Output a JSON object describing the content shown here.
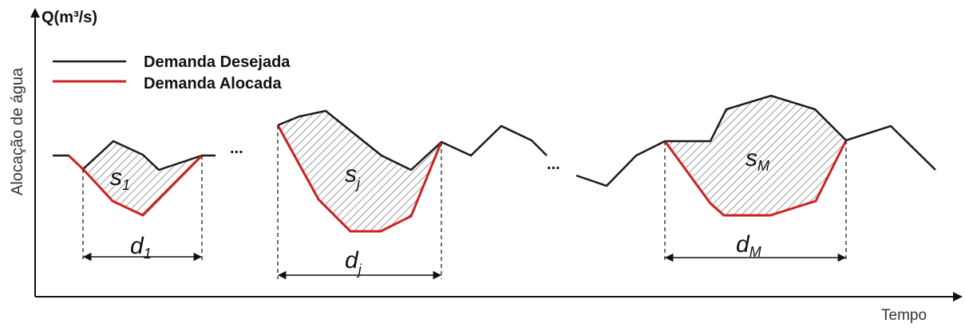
{
  "axis": {
    "y_title": "Q(m³/s)",
    "y_label": "Alocação de água",
    "x_label": "Tempo"
  },
  "legend": [
    {
      "label": "Demanda Desejada",
      "color": "#1a1a1a"
    },
    {
      "label": "Demanda Alocada",
      "color": "#cc2222"
    }
  ],
  "ellipsis": [
    "...",
    "..."
  ],
  "events": [
    {
      "area": {
        "symbol": "s",
        "sub": "1"
      },
      "duration": {
        "symbol": "d",
        "sub": "1"
      }
    },
    {
      "area": {
        "symbol": "s",
        "sub": "j"
      },
      "duration": {
        "symbol": "d",
        "sub": "j"
      }
    },
    {
      "area": {
        "symbol": "s",
        "sub": "M"
      },
      "duration": {
        "symbol": "d",
        "sub": "M"
      }
    }
  ],
  "colors": {
    "desired": "#1a1a1a",
    "allocated": "#cc2222",
    "hatch": "#9a9a9a",
    "axis": "#111111"
  }
}
